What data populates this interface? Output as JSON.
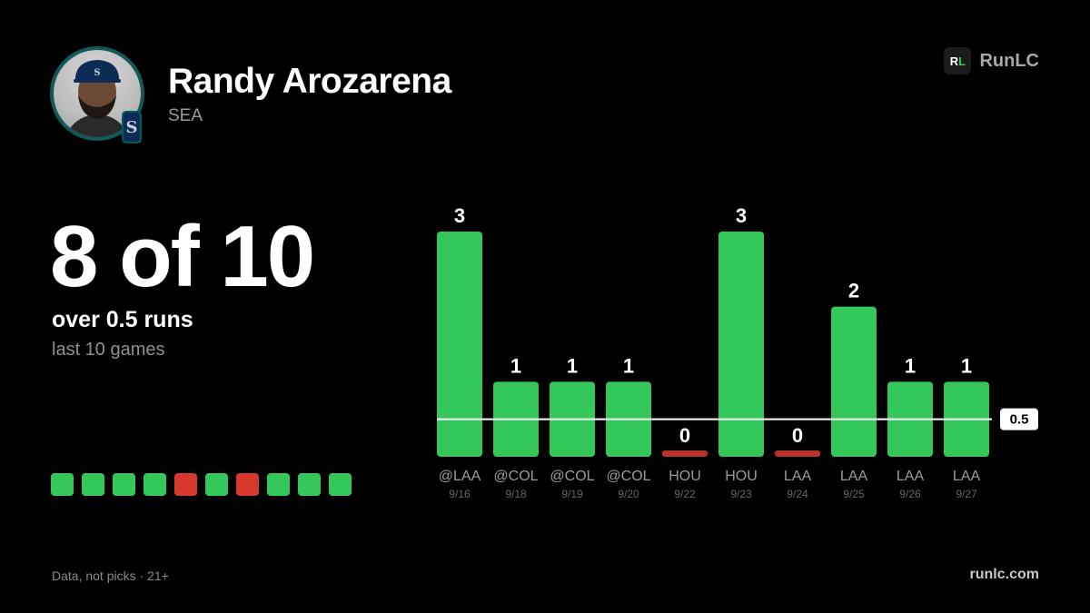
{
  "player": {
    "name": "Randy Arozarena",
    "team": "SEA",
    "team_logo_letter": "S"
  },
  "brand": {
    "logo_r": "R",
    "logo_l": "L",
    "name": "RunLC"
  },
  "summary": {
    "headline": "8 of 10",
    "line": "over 0.5 runs",
    "period": "last 10 games"
  },
  "colors": {
    "hit": "#34c759",
    "miss": "#d63a2f",
    "miss_bar": "#b8322a",
    "background": "#000000"
  },
  "footer": {
    "disclaimer": "Data, not picks · 21+",
    "url": "runlc.com"
  },
  "chart_data": {
    "type": "bar",
    "categories": [
      "@LAA",
      "@COL",
      "@COL",
      "@COL",
      "HOU",
      "HOU",
      "LAA",
      "LAA",
      "LAA",
      "LAA"
    ],
    "dates": [
      "9/16",
      "9/18",
      "9/19",
      "9/20",
      "9/22",
      "9/23",
      "9/24",
      "9/25",
      "9/26",
      "9/27"
    ],
    "values": [
      3,
      1,
      1,
      1,
      0,
      3,
      0,
      2,
      1,
      1
    ],
    "threshold": 0.5,
    "threshold_label": "0.5",
    "ylim": [
      0,
      3
    ],
    "grid": false,
    "title": "",
    "xlabel": "",
    "ylabel": ""
  }
}
